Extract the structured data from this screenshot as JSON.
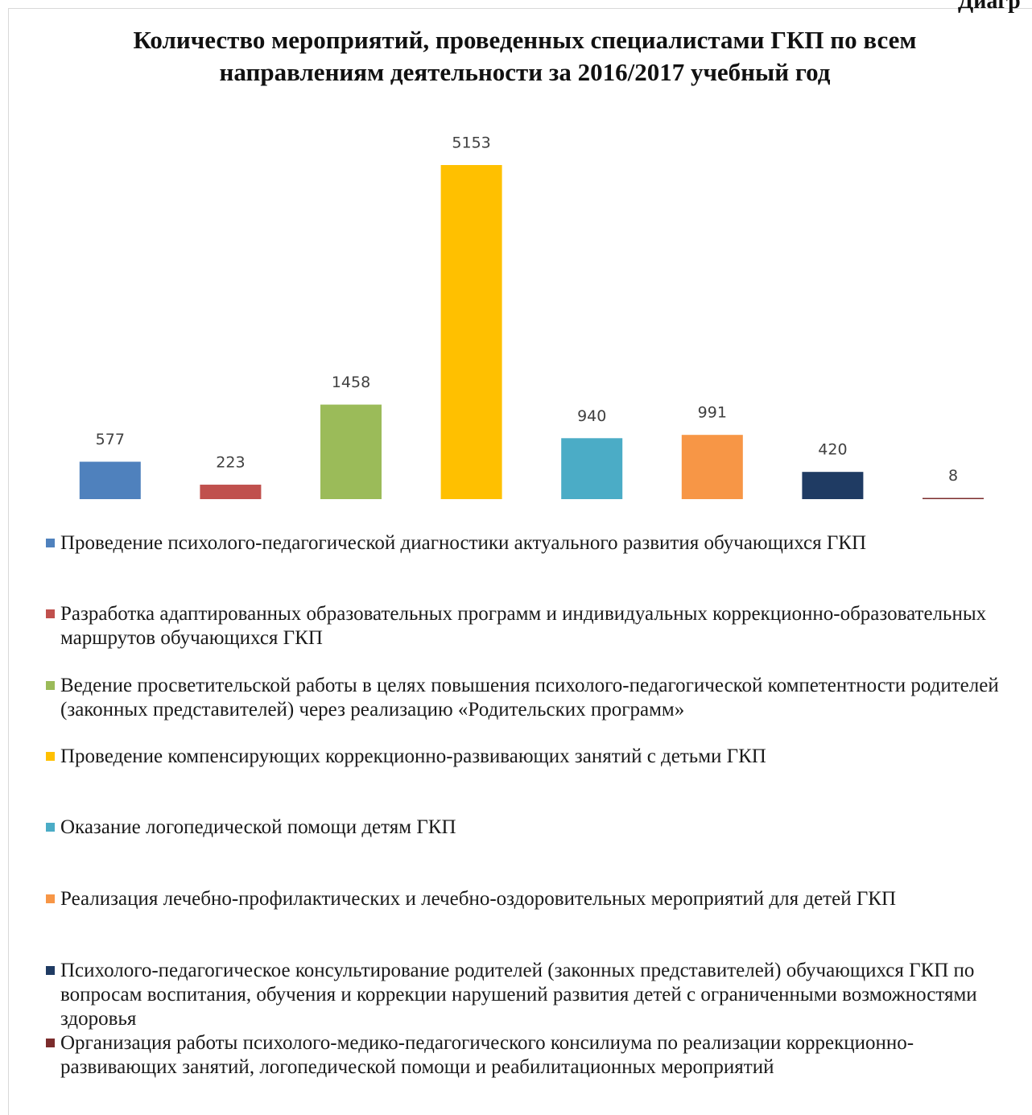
{
  "chart_data": {
    "type": "bar",
    "title": "Количество мероприятий, проведенных специалистами ГКП по всем направлениям деятельности за 2016/2017 учебный год",
    "annotation": "Диагр",
    "categories": [
      "Проведение психолого-педагогической диагностики актуального развития обучающихся ГКП",
      "Разработка адаптированных образовательных программ и индивидуальных коррекционно-образовательных маршрутов обучающихся ГКП",
      "Ведение просветительской работы в целях повышения психолого-педагогической компетентности родителей (законных представителей) через реализацию «Родительских программ»",
      "Проведение компенсирующих коррекционно-развивающих занятий с детьми ГКП",
      "Оказание логопедической помощи детям ГКП",
      "Реализация лечебно-профилактических и лечебно-оздоровительных мероприятий для детей ГКП",
      "Психолого-педагогическое консультирование родителей (законных представителей) обучающихся ГКП по вопросам воспитания, обучения и коррекции нарушений развития детей с ограниченными возможностями здоровья",
      "Организация работы психолого-медико-педагогического консилиума по реализации коррекционно-развивающих занятий, логопедической помощи и реабилитационных мероприятий"
    ],
    "values": [
      577,
      223,
      1458,
      5153,
      940,
      991,
      420,
      8
    ],
    "colors": [
      "#4f81bd",
      "#c0504d",
      "#9bbb59",
      "#ffc000",
      "#4bacc6",
      "#f79646",
      "#1f3b63",
      "#7b2c2c"
    ],
    "legend": "bottom"
  }
}
